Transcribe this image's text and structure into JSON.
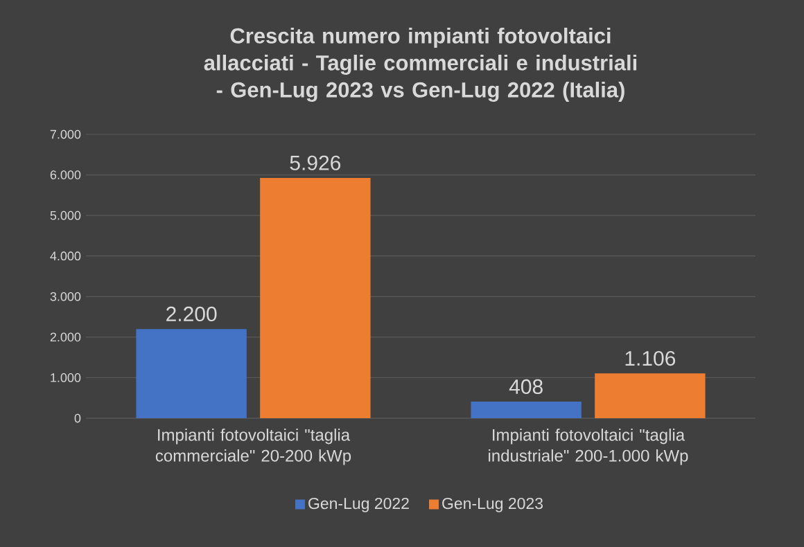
{
  "chart_data": {
    "type": "bar",
    "title": "Crescita numero impianti fotovoltaici allacciati - Taglie commerciali e industriali - Gen-Lug 2023 vs Gen-Lug 2022 (Italia)",
    "categories": [
      "Impianti fotovoltaici \"taglia commerciale\" 20-200 kWp",
      "Impianti fotovoltaici \"taglia industriale\" 200-1.000 kWp"
    ],
    "series": [
      {
        "name": "Gen-Lug 2022",
        "color": "#4472c4",
        "values": [
          2200,
          408
        ],
        "value_labels": [
          "2.200",
          "408"
        ]
      },
      {
        "name": "Gen-Lug 2023",
        "color": "#ed7d31",
        "values": [
          5926,
          1106
        ],
        "value_labels": [
          "5.926",
          "1.106"
        ]
      }
    ],
    "ylim": [
      0,
      7000
    ],
    "yticks": [
      0,
      {
        "value": 1000,
        "label": "1.000"
      },
      {
        "value": 2000,
        "label": "2.000"
      },
      {
        "value": 3000,
        "label": "3.000"
      },
      {
        "value": 4000,
        "label": "4.000"
      },
      {
        "value": 5000,
        "label": "5.000"
      },
      {
        "value": 6000,
        "label": "6.000"
      },
      {
        "value": 7000,
        "label": "7.000"
      }
    ],
    "grid": "y",
    "legend": "bottom"
  }
}
